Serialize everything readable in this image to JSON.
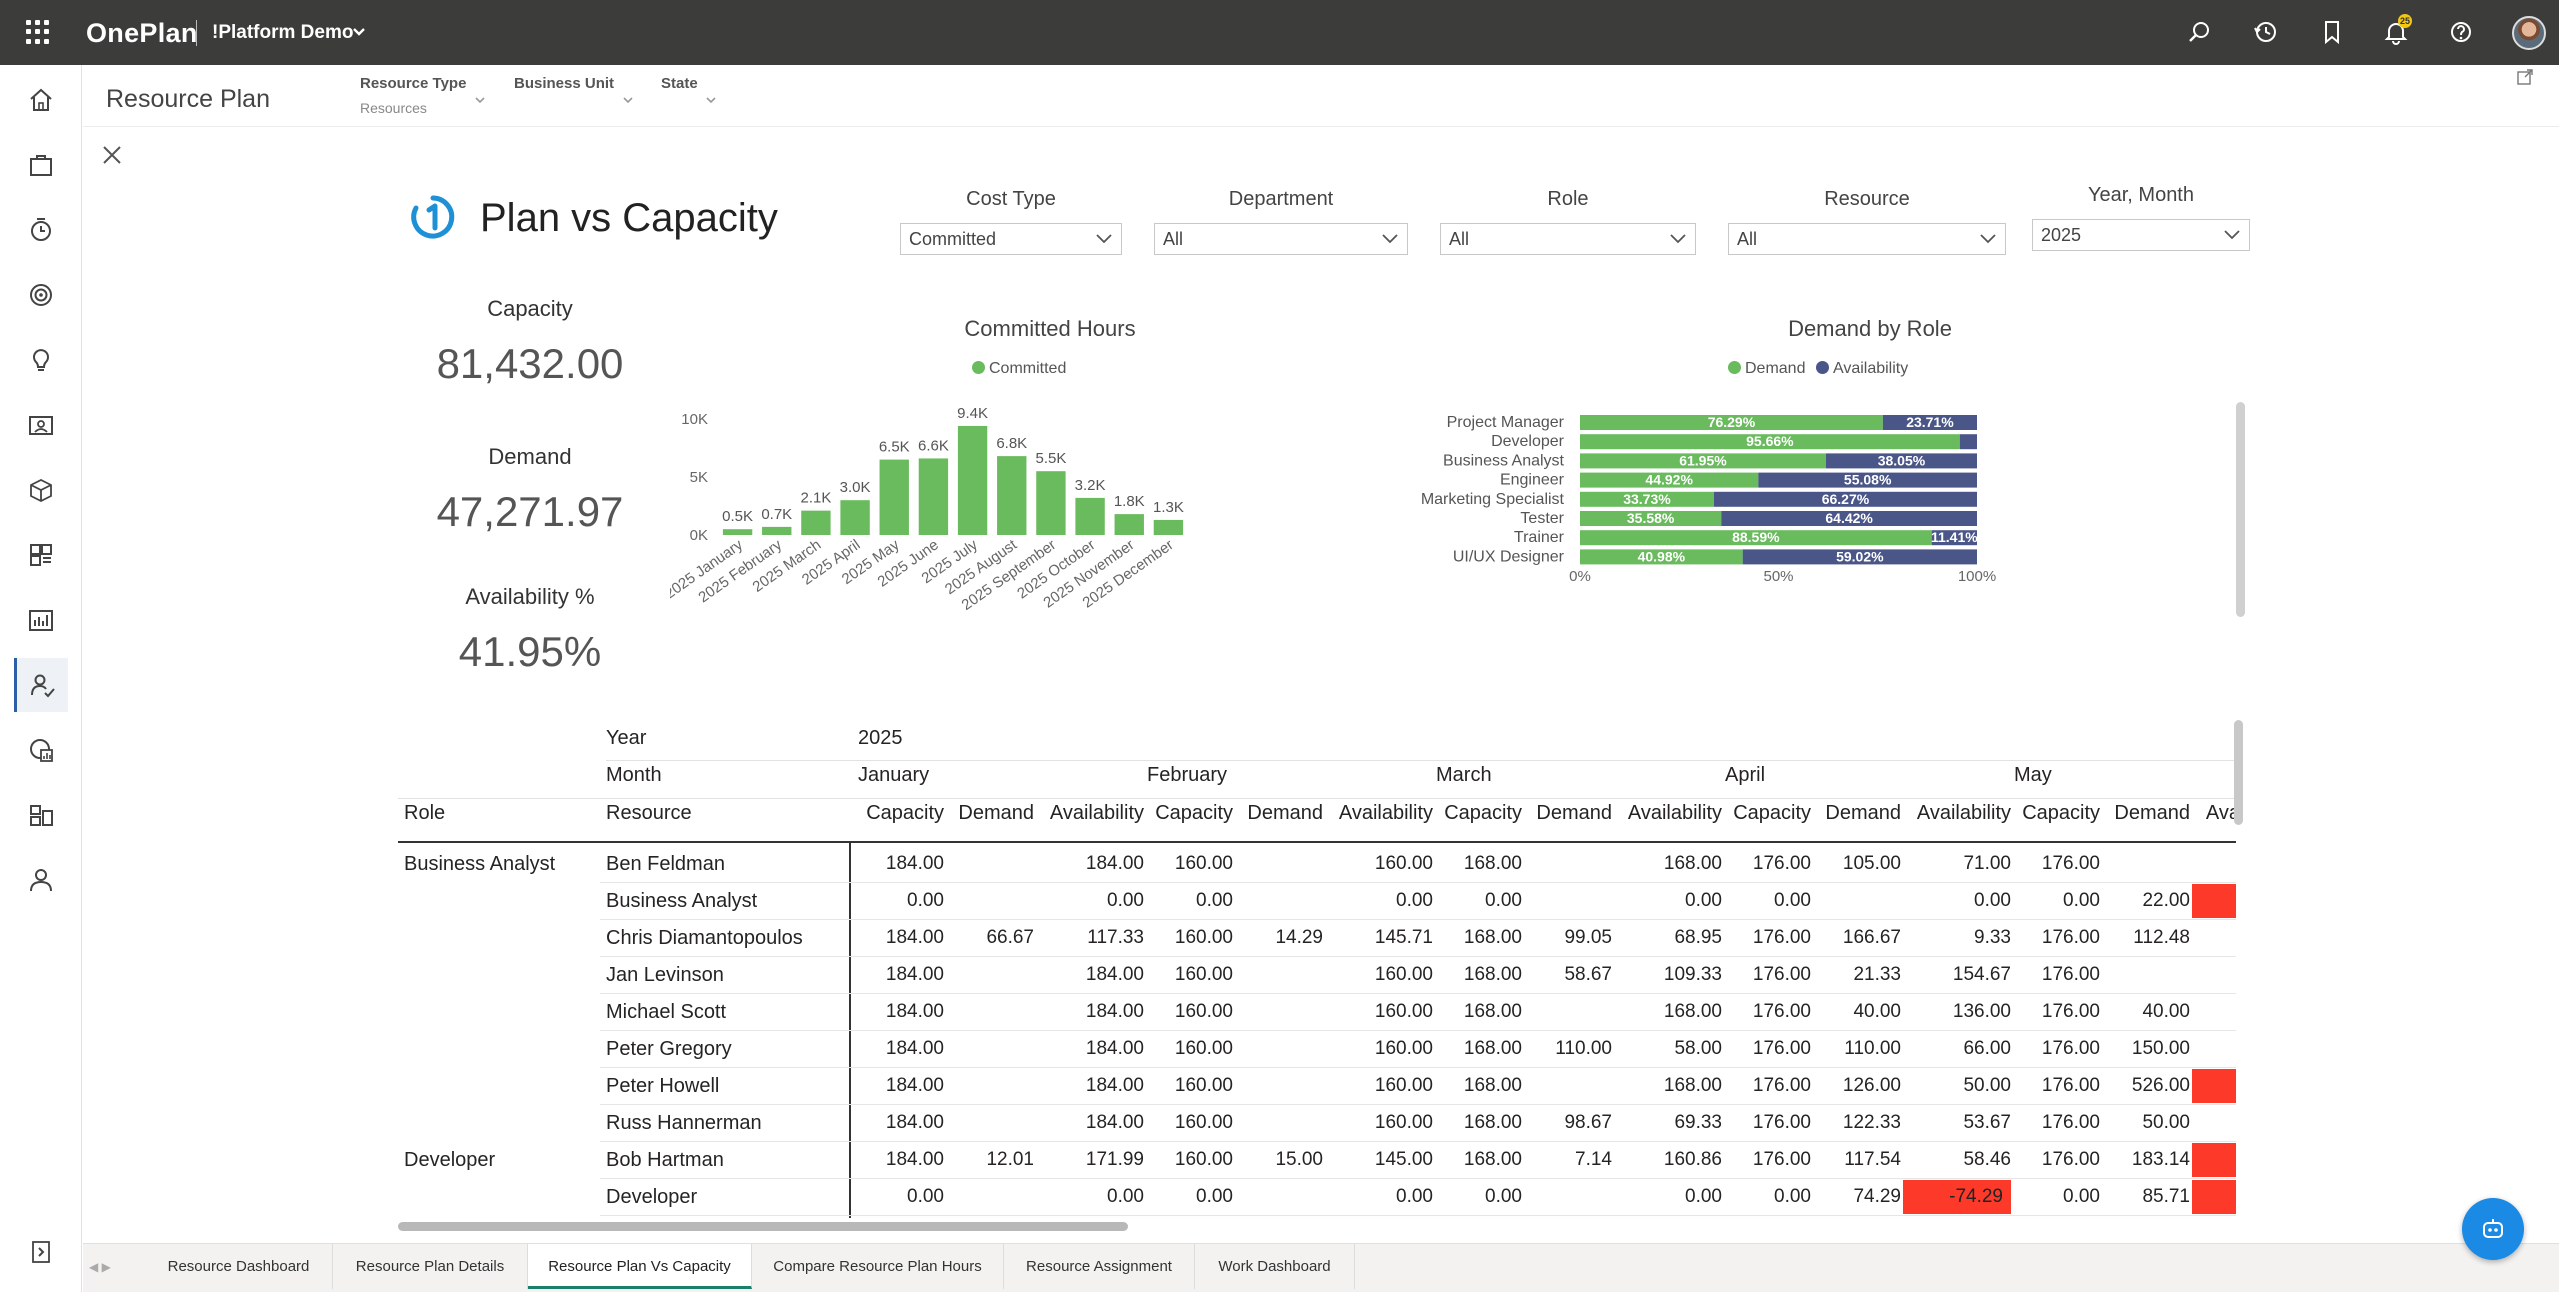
{
  "app": {
    "brand": "OnePlan",
    "environment": "!Platform Demo",
    "notification_count": "25"
  },
  "subheader": {
    "title": "Resource Plan",
    "filters": [
      {
        "label": "Resource Type",
        "value": "Resources"
      },
      {
        "label": "Business Unit",
        "value": ""
      },
      {
        "label": "State",
        "value": ""
      }
    ]
  },
  "report": {
    "title": "Plan vs Capacity",
    "slicers": [
      {
        "label": "Cost Type",
        "value": "Committed"
      },
      {
        "label": "Department",
        "value": "All"
      },
      {
        "label": "Role",
        "value": "All"
      },
      {
        "label": "Resource",
        "value": "All"
      },
      {
        "label": "Year, Month",
        "value": "2025"
      }
    ],
    "kpis": [
      {
        "label": "Capacity",
        "value": "81,432.00"
      },
      {
        "label": "Demand",
        "value": "47,271.97"
      },
      {
        "label": "Availability %",
        "value": "41.95%"
      }
    ]
  },
  "chart_data": [
    {
      "type": "bar",
      "title": "Committed Hours",
      "legend": [
        "Committed"
      ],
      "colors": [
        "#6aba5e"
      ],
      "categories": [
        "2025 January",
        "2025 February",
        "2025 March",
        "2025 April",
        "2025 May",
        "2025 June",
        "2025 July",
        "2025 August",
        "2025 September",
        "2025 October",
        "2025 November",
        "2025 December"
      ],
      "values": [
        500,
        700,
        2100,
        3000,
        6500,
        6600,
        9400,
        6800,
        5500,
        3200,
        1800,
        1300
      ],
      "data_labels": [
        "0.5K",
        "0.7K",
        "2.1K",
        "3.0K",
        "6.5K",
        "6.6K",
        "9.4K",
        "6.8K",
        "5.5K",
        "3.2K",
        "1.8K",
        "1.3K"
      ],
      "yticks": [
        "0K",
        "5K",
        "10K"
      ],
      "ylim": [
        0,
        10000
      ]
    },
    {
      "type": "bar",
      "orientation": "horizontal-stacked-100",
      "title": "Demand by Role",
      "legend_position": "top",
      "categories": [
        "Project Manager",
        "Developer",
        "Business Analyst",
        "Engineer",
        "Marketing Specialist",
        "Tester",
        "Trainer",
        "UI/UX Designer"
      ],
      "series": [
        {
          "name": "Demand",
          "color": "#6aba5e",
          "values": [
            76.29,
            95.66,
            61.95,
            44.92,
            33.73,
            35.58,
            88.59,
            40.98
          ],
          "labels": [
            "76.29%",
            "95.66%",
            "61.95%",
            "44.92%",
            "33.73%",
            "35.58%",
            "88.59%",
            "40.98%"
          ]
        },
        {
          "name": "Availability",
          "color": "#4a5688",
          "values": [
            23.71,
            4.34,
            38.05,
            55.08,
            66.27,
            64.42,
            11.41,
            59.02
          ],
          "labels": [
            "23.71%",
            "",
            "38.05%",
            "55.08%",
            "66.27%",
            "64.42%",
            "11.41%",
            "59.02%"
          ]
        }
      ],
      "xticks": [
        "0%",
        "50%",
        "100%"
      ],
      "xlim": [
        0,
        100
      ]
    }
  ],
  "matrix": {
    "year_label": "Year",
    "year_value": "2025",
    "month_label": "Month",
    "role_label": "Role",
    "resource_label": "Resource",
    "months": [
      "January",
      "February",
      "March",
      "April",
      "May"
    ],
    "measures": [
      "Capacity",
      "Demand",
      "Availability"
    ],
    "rows": [
      {
        "role": "Business Analyst",
        "resource": "Ben Feldman",
        "cells": [
          "184.00",
          "",
          "184.00",
          "160.00",
          "",
          "160.00",
          "168.00",
          "",
          "168.00",
          "176.00",
          "105.00",
          "71.00",
          "176.00",
          "",
          ""
        ]
      },
      {
        "role": "",
        "resource": "Business Analyst",
        "cells": [
          "0.00",
          "",
          "0.00",
          "0.00",
          "",
          "0.00",
          "0.00",
          "",
          "0.00",
          "0.00",
          "",
          "0.00",
          "0.00",
          "22.00",
          ""
        ],
        "neg": [
          14
        ]
      },
      {
        "role": "",
        "resource": "Chris Diamantopoulos",
        "cells": [
          "184.00",
          "66.67",
          "117.33",
          "160.00",
          "14.29",
          "145.71",
          "168.00",
          "99.05",
          "68.95",
          "176.00",
          "166.67",
          "9.33",
          "176.00",
          "112.48",
          ""
        ]
      },
      {
        "role": "",
        "resource": "Jan Levinson",
        "cells": [
          "184.00",
          "",
          "184.00",
          "160.00",
          "",
          "160.00",
          "168.00",
          "58.67",
          "109.33",
          "176.00",
          "21.33",
          "154.67",
          "176.00",
          "",
          ""
        ]
      },
      {
        "role": "",
        "resource": "Michael Scott",
        "cells": [
          "184.00",
          "",
          "184.00",
          "160.00",
          "",
          "160.00",
          "168.00",
          "",
          "168.00",
          "176.00",
          "40.00",
          "136.00",
          "176.00",
          "40.00",
          ""
        ]
      },
      {
        "role": "",
        "resource": "Peter Gregory",
        "cells": [
          "184.00",
          "",
          "184.00",
          "160.00",
          "",
          "160.00",
          "168.00",
          "110.00",
          "58.00",
          "176.00",
          "110.00",
          "66.00",
          "176.00",
          "150.00",
          ""
        ]
      },
      {
        "role": "",
        "resource": "Peter Howell",
        "cells": [
          "184.00",
          "",
          "184.00",
          "160.00",
          "",
          "160.00",
          "168.00",
          "",
          "168.00",
          "176.00",
          "126.00",
          "50.00",
          "176.00",
          "526.00",
          "-"
        ],
        "neg": [
          14
        ]
      },
      {
        "role": "",
        "resource": "Russ Hannerman",
        "cells": [
          "184.00",
          "",
          "184.00",
          "160.00",
          "",
          "160.00",
          "168.00",
          "98.67",
          "69.33",
          "176.00",
          "122.33",
          "53.67",
          "176.00",
          "50.00",
          ""
        ]
      },
      {
        "role": "Developer",
        "resource": "Bob Hartman",
        "cells": [
          "184.00",
          "12.01",
          "171.99",
          "160.00",
          "15.00",
          "145.00",
          "168.00",
          "7.14",
          "160.86",
          "176.00",
          "117.54",
          "58.46",
          "176.00",
          "183.14",
          ""
        ],
        "neg": [
          14
        ]
      },
      {
        "role": "",
        "resource": "Developer",
        "cells": [
          "0.00",
          "",
          "0.00",
          "0.00",
          "",
          "0.00",
          "0.00",
          "",
          "0.00",
          "0.00",
          "74.29",
          "-74.29",
          "0.00",
          "85.71",
          ""
        ],
        "neg": [
          11,
          14
        ]
      }
    ]
  },
  "tabs": [
    "Resource Dashboard",
    "Resource Plan Details",
    "Resource Plan Vs Capacity",
    "Compare Resource Plan Hours",
    "Resource Assignment",
    "Work Dashboard"
  ],
  "active_tab": "Resource Plan Vs Capacity"
}
